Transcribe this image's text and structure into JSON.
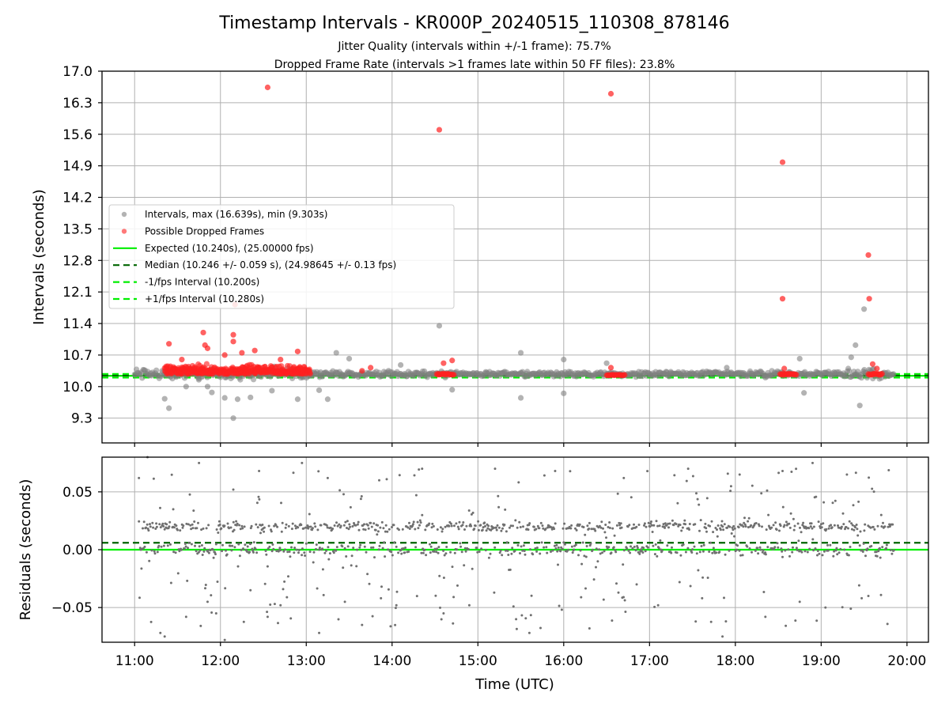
{
  "chart_data": [
    {
      "type": "scatter",
      "title": "Timestamp Intervals - KR000P_20240515_110308_878146",
      "subtitle_lines": [
        "Jitter Quality (intervals within +/-1 frame): 75.7%",
        "Dropped Frame Rate (intervals >1 frames late within 50 FF files): 23.8%"
      ],
      "ylabel": "Intervals (seconds)",
      "xlim_hours": [
        10.62,
        20.25
      ],
      "ylim": [
        8.75,
        17.0
      ],
      "yticks": [
        9.3,
        10.0,
        10.7,
        11.4,
        12.1,
        12.8,
        13.5,
        14.2,
        14.9,
        15.6,
        16.3,
        17.0
      ],
      "ytick_labels": [
        "9.3",
        "10.0",
        "10.7",
        "11.4",
        "12.1",
        "12.8",
        "13.5",
        "14.2",
        "14.9",
        "15.6",
        "16.3",
        "17.0"
      ],
      "grid": true,
      "legend_position": "center-left",
      "legend": [
        {
          "label": "Intervals, max (16.639s), min (9.303s)",
          "marker": "dot",
          "color": "#808080"
        },
        {
          "label": "Possible Dropped Frames",
          "marker": "dot",
          "color": "#ff2020"
        },
        {
          "label": "Expected (10.240s), (25.00000 fps)",
          "marker": "line",
          "color": "#00ee00",
          "dash": ""
        },
        {
          "label": "Median (10.246 +/- 0.059 s), (24.98645 +/- 0.13 fps)",
          "marker": "line",
          "color": "#006400",
          "dash": "8,5"
        },
        {
          "label": "-1/fps Interval (10.200s)",
          "marker": "line",
          "color": "#00ee00",
          "dash": "8,5"
        },
        {
          "label": "+1/fps Interval (10.280s)",
          "marker": "line",
          "color": "#00ee00",
          "dash": "8,5"
        }
      ],
      "reference_lines": [
        {
          "name": "Expected",
          "y": 10.24,
          "color": "#00ee00",
          "dash": ""
        },
        {
          "name": "Median",
          "y": 10.246,
          "color": "#006400",
          "dash": "8,5"
        },
        {
          "name": "-1/fps Interval",
          "y": 10.2,
          "color": "#00ee00",
          "dash": "8,5"
        },
        {
          "name": "+1/fps Interval",
          "y": 10.28,
          "color": "#00ee00",
          "dash": "8,5"
        }
      ],
      "series": [
        {
          "name": "Intervals",
          "color": "#808080",
          "points": [
            [
              11.35,
              9.73
            ],
            [
              11.4,
              9.52
            ],
            [
              11.6,
              10.0
            ],
            [
              11.75,
              10.18
            ],
            [
              11.85,
              10.0
            ],
            [
              11.9,
              9.87
            ],
            [
              12.05,
              9.75
            ],
            [
              12.15,
              9.3
            ],
            [
              12.2,
              9.72
            ],
            [
              12.35,
              9.76
            ],
            [
              12.6,
              9.91
            ],
            [
              12.9,
              9.72
            ],
            [
              13.15,
              9.92
            ],
            [
              13.25,
              9.72
            ],
            [
              13.35,
              10.75
            ],
            [
              13.5,
              10.62
            ],
            [
              14.1,
              10.48
            ],
            [
              14.55,
              11.35
            ],
            [
              14.62,
              10.2
            ],
            [
              14.7,
              9.93
            ],
            [
              15.5,
              10.75
            ],
            [
              15.5,
              9.75
            ],
            [
              16.0,
              10.6
            ],
            [
              16.0,
              9.85
            ],
            [
              16.5,
              10.52
            ],
            [
              17.2,
              10.32
            ],
            [
              17.9,
              10.42
            ],
            [
              18.35,
              10.2
            ],
            [
              18.75,
              10.62
            ],
            [
              18.8,
              9.86
            ],
            [
              19.35,
              10.65
            ],
            [
              19.4,
              10.92
            ],
            [
              19.45,
              9.58
            ],
            [
              19.5,
              11.72
            ],
            [
              19.6,
              10.38
            ]
          ]
        },
        {
          "name": "Possible Dropped Frames",
          "color": "#ff2020",
          "points": [
            [
              11.4,
              10.95
            ],
            [
              11.55,
              10.6
            ],
            [
              11.8,
              11.2
            ],
            [
              11.82,
              10.92
            ],
            [
              11.85,
              10.85
            ],
            [
              12.05,
              10.7
            ],
            [
              12.15,
              11.15
            ],
            [
              12.15,
              11.0
            ],
            [
              12.17,
              11.82
            ],
            [
              12.25,
              10.75
            ],
            [
              12.4,
              10.8
            ],
            [
              12.55,
              16.64
            ],
            [
              12.7,
              10.6
            ],
            [
              12.9,
              10.78
            ],
            [
              13.65,
              10.35
            ],
            [
              13.75,
              10.42
            ],
            [
              14.55,
              15.7
            ],
            [
              14.6,
              10.52
            ],
            [
              14.7,
              10.58
            ],
            [
              16.55,
              16.5
            ],
            [
              16.55,
              10.42
            ],
            [
              18.55,
              14.98
            ],
            [
              18.55,
              11.95
            ],
            [
              18.57,
              10.4
            ],
            [
              19.55,
              12.92
            ],
            [
              19.56,
              11.95
            ],
            [
              19.6,
              10.5
            ],
            [
              19.65,
              10.4
            ]
          ]
        }
      ]
    },
    {
      "type": "scatter",
      "ylabel": "Residuals (seconds)",
      "xlabel": "Time (UTC)",
      "xlim_hours": [
        10.62,
        20.25
      ],
      "ylim": [
        -0.08,
        0.08
      ],
      "xticks_hours": [
        11,
        12,
        13,
        14,
        15,
        16,
        17,
        18,
        19,
        20
      ],
      "xtick_labels": [
        "11:00",
        "12:00",
        "13:00",
        "14:00",
        "15:00",
        "16:00",
        "17:00",
        "18:00",
        "19:00",
        "20:00"
      ],
      "yticks": [
        -0.05,
        0.0,
        0.05
      ],
      "ytick_labels": [
        "−0.05",
        "0.00",
        "0.05"
      ],
      "grid": true,
      "reference_lines": [
        {
          "name": "Expected",
          "y": 0.0,
          "color": "#00ee00",
          "dash": ""
        },
        {
          "name": "Median",
          "y": 0.006,
          "color": "#006400",
          "dash": "8,5"
        }
      ],
      "series": [
        {
          "name": "Residuals",
          "color": "#707070",
          "points": [
            [
              11.05,
              0.062
            ],
            [
              11.15,
              0.08
            ],
            [
              11.3,
              -0.072
            ],
            [
              11.35,
              -0.075
            ],
            [
              11.45,
              0.035
            ],
            [
              11.6,
              -0.058
            ],
            [
              11.75,
              0.075
            ],
            [
              11.85,
              -0.045
            ],
            [
              11.95,
              -0.055
            ],
            [
              12.05,
              -0.078
            ],
            [
              12.15,
              0.052
            ],
            [
              12.35,
              -0.035
            ],
            [
              12.45,
              0.068
            ],
            [
              12.55,
              -0.058
            ],
            [
              12.7,
              -0.048
            ],
            [
              12.95,
              0.075
            ],
            [
              13.15,
              -0.072
            ],
            [
              13.25,
              0.062
            ],
            [
              13.45,
              -0.045
            ],
            [
              13.65,
              -0.065
            ],
            [
              13.85,
              0.06
            ],
            [
              14.05,
              -0.048
            ],
            [
              14.35,
              0.07
            ],
            [
              14.6,
              -0.055
            ],
            [
              14.9,
              -0.048
            ],
            [
              15.2,
              0.07
            ],
            [
              15.6,
              -0.072
            ],
            [
              15.9,
              0.068
            ],
            [
              16.3,
              -0.068
            ],
            [
              16.7,
              0.062
            ],
            [
              16.85,
              -0.03
            ],
            [
              17.1,
              -0.048
            ],
            [
              17.45,
              0.07
            ],
            [
              17.85,
              -0.075
            ],
            [
              18.05,
              0.065
            ],
            [
              18.35,
              -0.058
            ],
            [
              18.55,
              0.068
            ],
            [
              18.75,
              -0.045
            ],
            [
              18.9,
              0.075
            ],
            [
              19.05,
              -0.05
            ],
            [
              19.3,
              0.065
            ],
            [
              19.55,
              -0.04
            ],
            [
              19.7,
              0.03
            ],
            [
              19.8,
              0.02
            ]
          ]
        }
      ]
    }
  ]
}
